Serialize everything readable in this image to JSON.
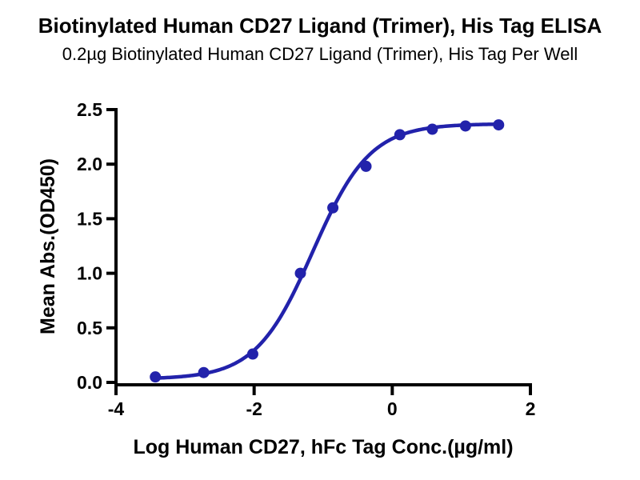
{
  "header": {
    "title": "Biotinylated Human CD27 Ligand (Trimer), His Tag ELISA",
    "subtitle": "0.2µg Biotinylated Human CD27 Ligand (Trimer), His Tag Per Well"
  },
  "chart_data": {
    "type": "scatter",
    "title": "Biotinylated Human CD27 Ligand (Trimer), His Tag ELISA",
    "subtitle": "0.2µg Biotinylated Human CD27 Ligand (Trimer), His Tag Per Well",
    "xlabel": "Log Human CD27, hFc Tag Conc.(µg/ml)",
    "ylabel": "Mean Abs.(OD450)",
    "x": [
      -3.43,
      -2.73,
      -2.02,
      -1.33,
      -0.86,
      -0.38,
      0.11,
      0.58,
      1.06,
      1.54
    ],
    "y": [
      0.05,
      0.09,
      0.26,
      1.0,
      1.6,
      1.98,
      2.27,
      2.32,
      2.35,
      2.36
    ],
    "fit_curve": {
      "model": "4PL sigmoid",
      "bottom": 0.03,
      "top": 2.37,
      "logEC50": -1.15,
      "hill": 1.05
    },
    "x_ticks": [
      -4,
      -2,
      0,
      2
    ],
    "y_ticks": [
      0.0,
      0.5,
      1.0,
      1.5,
      2.0,
      2.5
    ],
    "xlim": [
      -4,
      2
    ],
    "ylim": [
      0,
      2.5
    ],
    "grid": false,
    "legend": "none",
    "marker_color": "#2222ab",
    "line_color": "#2222ab",
    "axis_color": "#000000"
  }
}
